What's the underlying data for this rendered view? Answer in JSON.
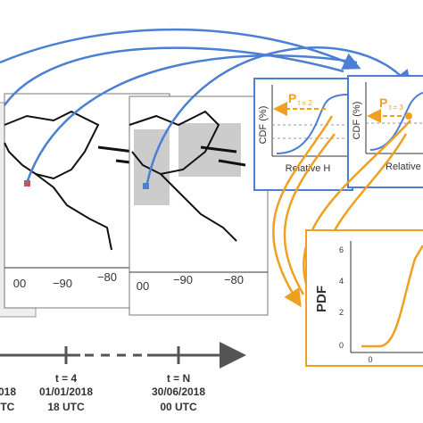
{
  "maps": [
    {
      "xticks": [
        "00",
        "−90",
        "−80"
      ]
    },
    {
      "xticks": [
        "00",
        "−90",
        "−80"
      ]
    }
  ],
  "timeline": {
    "partial": {
      "date": "018",
      "time": "UTC"
    },
    "steps": [
      {
        "step": "t = 4",
        "date": "01/01/2018",
        "time": "18 UTC"
      },
      {
        "step": "t = N",
        "date": "30/06/2018",
        "time": "00 UTC"
      }
    ]
  },
  "cdf_panels": [
    {
      "y_label": "CDF (%)",
      "p_label": "P",
      "p_sub": "t = 2",
      "x_label": "Relative H"
    },
    {
      "y_label": "CDF (%)",
      "p_label": "P",
      "p_sub": "t = 3",
      "x_label": "Relative"
    }
  ],
  "pdf_panel": {
    "y_label": "PDF",
    "yticks": [
      "6",
      "4",
      "2",
      "0"
    ],
    "xticks": [
      "0"
    ]
  }
}
